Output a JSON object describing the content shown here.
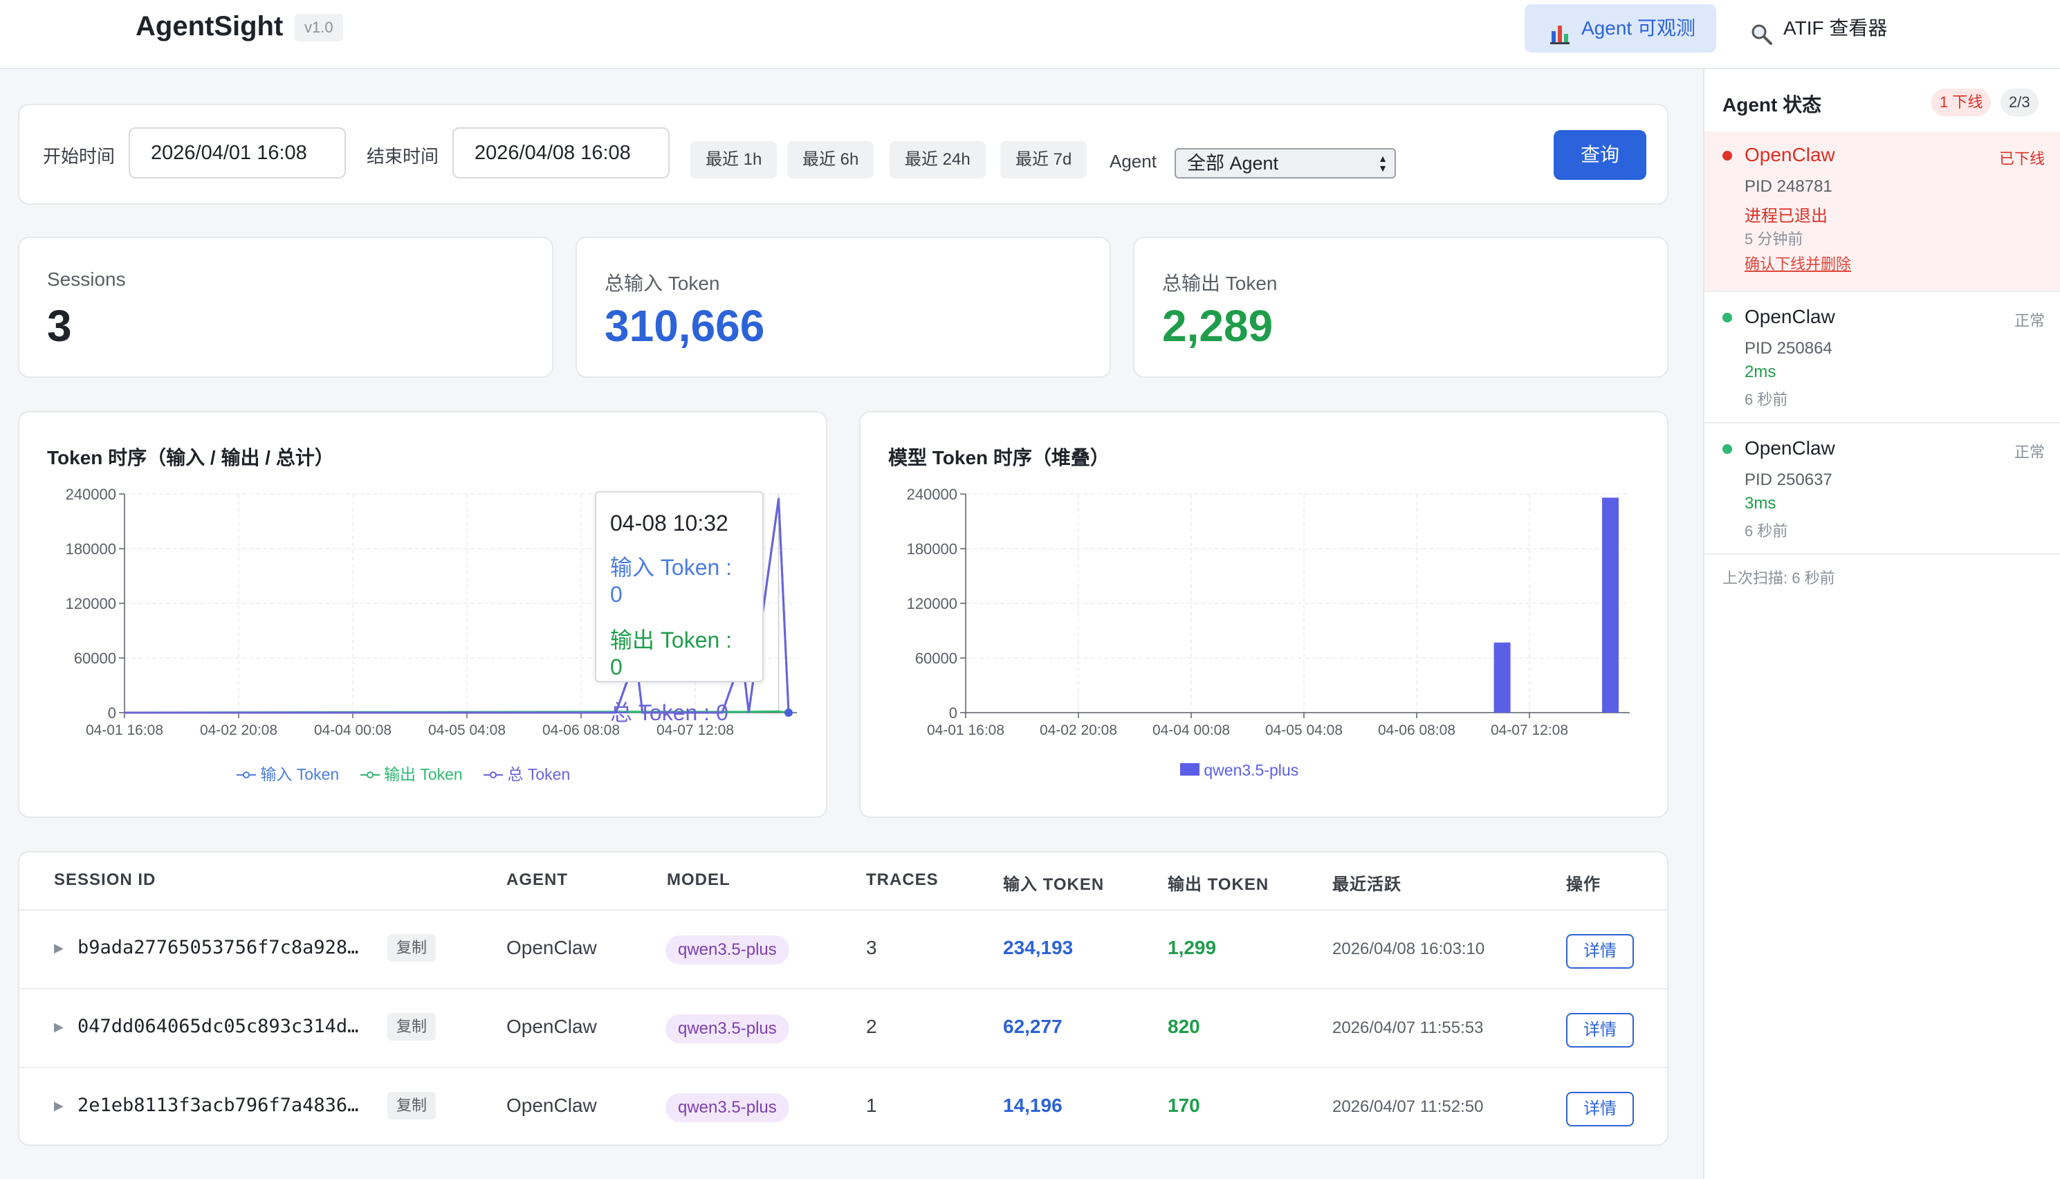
{
  "header": {
    "brand": "AgentSight",
    "version": "v1.0",
    "nav": [
      {
        "label": "Agent 可观测",
        "icon": "bar-chart-icon",
        "active": true
      },
      {
        "label": "ATIF 查看器",
        "icon": "magnifier-icon",
        "active": false
      }
    ]
  },
  "filter": {
    "start_label": "开始时间",
    "start_value": "2026/04/01 16:08",
    "end_label": "结束时间",
    "end_value": "2026/04/08 16:08",
    "quick": [
      "最近 1h",
      "最近 6h",
      "最近 24h",
      "最近 7d"
    ],
    "agent_label": "Agent",
    "agent_selected": "全部 Agent",
    "query_label": "查询"
  },
  "stats": [
    {
      "label": "Sessions",
      "value": "3",
      "color": "#1f2329"
    },
    {
      "label": "总输入 Token",
      "value": "310,666",
      "color": "#2c63d8"
    },
    {
      "label": "总输出 Token",
      "value": "2,289",
      "color": "#1f9d4b"
    }
  ],
  "chart_data": [
    {
      "type": "line",
      "title": "Token 时序（输入 / 输出 / 总计）",
      "x_ticks": [
        "04-01 16:08",
        "04-02 20:08",
        "04-04 00:08",
        "04-05 04:08",
        "04-06 08:08",
        "04-07 12:08"
      ],
      "y_ticks": [
        "0",
        "60000",
        "120000",
        "180000",
        "240000"
      ],
      "ylim": [
        0,
        240000
      ],
      "grid": true,
      "legend_position": "bottom",
      "series": [
        {
          "name": "输入 Token",
          "color": "#4a7de0",
          "points": [
            [
              0,
              0
            ],
            [
              0.74,
              0
            ],
            [
              0.77,
              61000
            ],
            [
              0.78,
              0
            ],
            [
              0.9,
              0
            ],
            [
              0.93,
              61000
            ],
            [
              0.94,
              0
            ],
            [
              0.985,
              234193
            ],
            [
              1.0,
              0
            ]
          ]
        },
        {
          "name": "输出 Token",
          "color": "#2eb872",
          "points": [
            [
              0,
              0
            ],
            [
              0.77,
              1000
            ],
            [
              0.93,
              800
            ],
            [
              0.985,
              1299
            ],
            [
              1.0,
              0
            ]
          ]
        },
        {
          "name": "总 Token",
          "color": "#6b63d8",
          "points": [
            [
              0,
              0
            ],
            [
              0.74,
              0
            ],
            [
              0.77,
              62000
            ],
            [
              0.78,
              0
            ],
            [
              0.9,
              0
            ],
            [
              0.93,
              62000
            ],
            [
              0.94,
              0
            ],
            [
              0.985,
              235492
            ],
            [
              1.0,
              0
            ]
          ]
        }
      ],
      "tooltip": {
        "title": "04-08 10:32",
        "rows": [
          {
            "label": "输入 Token : 0",
            "color": "#4a7de0"
          },
          {
            "label": "输出 Token : 0",
            "color": "#1f9d4b"
          },
          {
            "label": "总 Token : 0",
            "color": "#6b63d8"
          }
        ]
      }
    },
    {
      "type": "bar",
      "title": "模型 Token 时序（堆叠）",
      "x_ticks": [
        "04-01 16:08",
        "04-02 20:08",
        "04-04 00:08",
        "04-05 04:08",
        "04-06 08:08",
        "04-07 12:08"
      ],
      "y_ticks": [
        "0",
        "60000",
        "120000",
        "180000",
        "240000"
      ],
      "ylim": [
        0,
        240000
      ],
      "grid": true,
      "legend_position": "bottom",
      "series": [
        {
          "name": "qwen3.5-plus",
          "color": "#5b5fe6"
        }
      ],
      "bars": [
        {
          "x": 0.83,
          "value": 77000
        },
        {
          "x": 1.0,
          "value": 236000
        }
      ]
    }
  ],
  "table": {
    "headers": [
      "SESSION ID",
      "AGENT",
      "MODEL",
      "TRACES",
      "输入 TOKEN",
      "输出 TOKEN",
      "最近活跃",
      "操作"
    ],
    "copy_label": "复制",
    "detail_label": "详情",
    "rows": [
      {
        "id": "b9ada27765053756f7c8a928…",
        "agent": "OpenClaw",
        "model": "qwen3.5-plus",
        "traces": "3",
        "in": "234,193",
        "out": "1,299",
        "time": "2026/04/08 16:03:10"
      },
      {
        "id": "047dd064065dc05c893c314d…",
        "agent": "OpenClaw",
        "model": "qwen3.5-plus",
        "traces": "2",
        "in": "62,277",
        "out": "820",
        "time": "2026/04/07 11:55:53"
      },
      {
        "id": "2e1eb8113f3acb796f7a4836…",
        "agent": "OpenClaw",
        "model": "qwen3.5-plus",
        "traces": "1",
        "in": "14,196",
        "out": "170",
        "time": "2026/04/07 11:52:50"
      }
    ]
  },
  "agents": {
    "title": "Agent 状态",
    "offline_badge": "1 下线",
    "count_badge": "2/3",
    "items": [
      {
        "name": "OpenClaw",
        "state": "已下线",
        "pid": "PID 248781",
        "detail": "进程已退出",
        "ago": "5 分钟前",
        "action": "确认下线并删除",
        "offline": true
      },
      {
        "name": "OpenClaw",
        "state": "正常",
        "pid": "PID 250864",
        "detail": "2ms",
        "ago": "6 秒前",
        "offline": false
      },
      {
        "name": "OpenClaw",
        "state": "正常",
        "pid": "PID 250637",
        "detail": "3ms",
        "ago": "6 秒前",
        "offline": false
      }
    ],
    "last_scan": "上次扫描: 6 秒前"
  }
}
